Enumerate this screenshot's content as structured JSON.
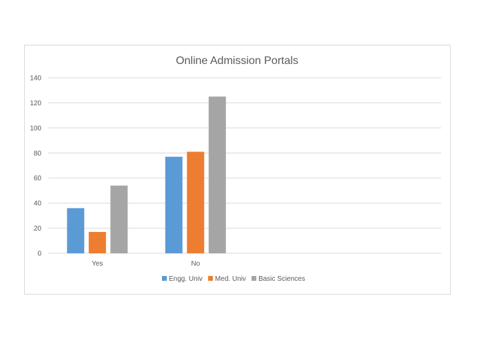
{
  "chart_data": {
    "type": "bar",
    "title": "Online Admission Portals",
    "categories": [
      "Yes",
      "No"
    ],
    "series": [
      {
        "name": "Engg. Univ",
        "color": "#5b9bd5",
        "values": [
          36,
          77
        ]
      },
      {
        "name": "Med. Univ",
        "color": "#ed7d31",
        "values": [
          17,
          81
        ]
      },
      {
        "name": "Basic Sciences",
        "color": "#a5a5a5",
        "values": [
          54,
          125
        ]
      }
    ],
    "ylim": [
      0,
      140
    ],
    "yticks": [
      "0",
      "20",
      "40",
      "60",
      "80",
      "100",
      "120",
      "140"
    ],
    "grid": true,
    "legend": "bottom"
  }
}
